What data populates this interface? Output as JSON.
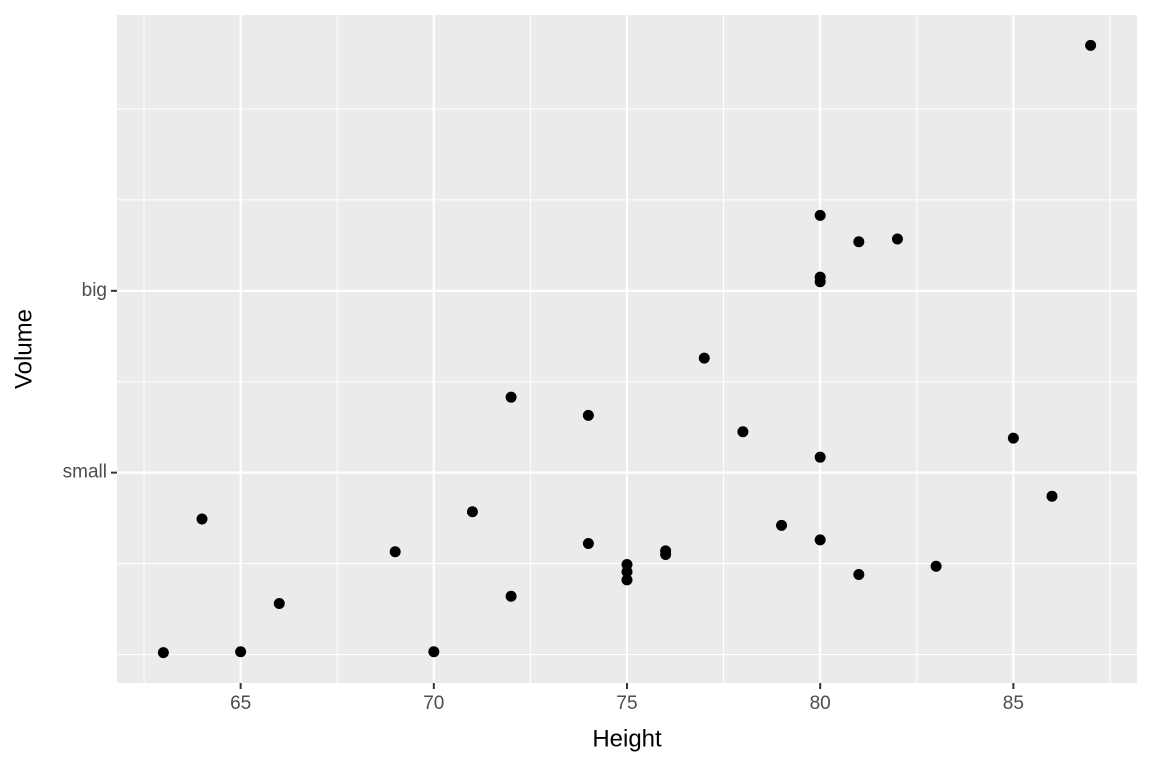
{
  "chart_data": {
    "type": "scatter",
    "x_label": "Height",
    "y_label": "Volume",
    "x": [
      70,
      65,
      63,
      72,
      81,
      83,
      66,
      75,
      80,
      75,
      79,
      76,
      76,
      69,
      75,
      74,
      85,
      86,
      71,
      64,
      78,
      80,
      74,
      72,
      77,
      81,
      82,
      80,
      80,
      80,
      87
    ],
    "values": [
      10.3,
      10.3,
      10.2,
      16.4,
      18.8,
      19.7,
      15.6,
      18.2,
      22.6,
      19.9,
      24.2,
      21.0,
      21.4,
      21.3,
      19.1,
      22.2,
      33.8,
      27.4,
      25.7,
      24.9,
      34.5,
      31.7,
      36.3,
      38.3,
      42.6,
      55.4,
      55.7,
      58.3,
      51.5,
      51.0,
      77.0
    ],
    "color": "#000000",
    "xlim": [
      61.8,
      88.2
    ],
    "xticks": [
      65,
      70,
      75,
      80,
      85
    ],
    "ylim": [
      6.86,
      80.34
    ],
    "yticks": [
      {
        "value": 30,
        "label": "small"
      },
      {
        "value": 50,
        "label": "big"
      }
    ],
    "x_minor_grid": [
      62.5,
      67.5,
      72.5,
      77.5,
      82.5,
      87.5
    ],
    "y_minor_grid": [
      10,
      20,
      40,
      60,
      70
    ],
    "grid": true
  }
}
